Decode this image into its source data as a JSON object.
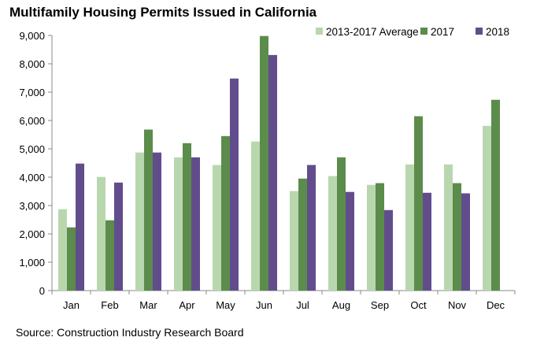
{
  "chart_data": {
    "type": "bar",
    "title": "Multifamily Housing Permits Issued in California",
    "categories": [
      "Jan",
      "Feb",
      "Mar",
      "Apr",
      "May",
      "Jun",
      "Jul",
      "Aug",
      "Sep",
      "Oct",
      "Nov",
      "Dec"
    ],
    "series": [
      {
        "name": "2013-2017 Average",
        "color": "#b9d7ae",
        "values": [
          2870,
          4010,
          4870,
          4700,
          4430,
          5260,
          3510,
          4040,
          3730,
          4450,
          4450,
          5810
        ]
      },
      {
        "name": "2017",
        "color": "#5b8c4b",
        "values": [
          2230,
          2480,
          5680,
          5200,
          5450,
          8980,
          3950,
          4700,
          3790,
          6150,
          3790,
          6730
        ]
      },
      {
        "name": "2018",
        "color": "#614d8c",
        "values": [
          4480,
          3810,
          4870,
          4700,
          7480,
          8310,
          4430,
          3480,
          2840,
          3450,
          3430,
          null
        ]
      }
    ],
    "xlabel": "",
    "ylabel": "",
    "ylim": [
      0,
      9000
    ],
    "yticks": [
      "0",
      "1,000",
      "2,000",
      "3,000",
      "4,000",
      "5,000",
      "6,000",
      "7,000",
      "8,000",
      "9,000"
    ],
    "grid": false,
    "legend": "top-right"
  },
  "source": "Source: Construction Industry Research Board"
}
